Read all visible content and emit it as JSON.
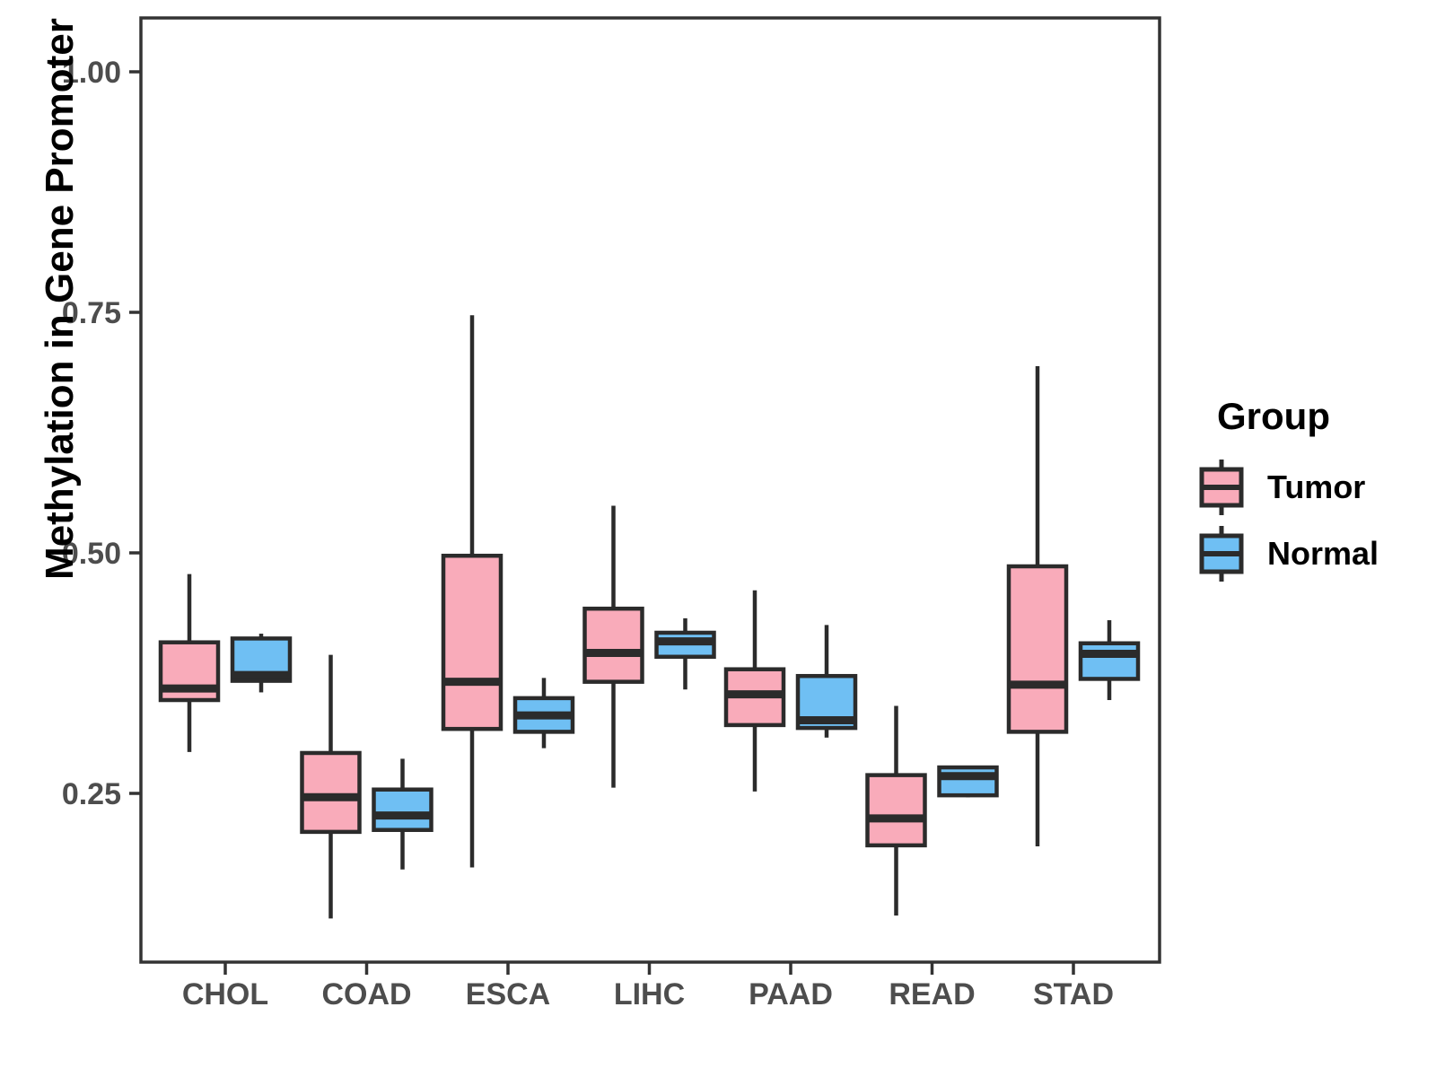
{
  "chart_data": {
    "type": "boxplot",
    "title": "",
    "xlabel": "",
    "ylabel": "Methylation in Gene Promoter",
    "categories": [
      "CHOL",
      "COAD",
      "ESCA",
      "LIHC",
      "PAAD",
      "READ",
      "STAD"
    ],
    "y_axis": {
      "ticks": [
        {
          "label": "1.00",
          "value": 1.0
        },
        {
          "label": "0.75",
          "value": 0.75
        },
        {
          "label": "0.50",
          "value": 0.5
        },
        {
          "label": "0.25",
          "value": 0.25
        }
      ],
      "range_shown": [
        0.075,
        1.055
      ],
      "grid": false
    },
    "legend": {
      "title": "Group",
      "position": "right",
      "entries": [
        {
          "label": "Tumor",
          "color": "#F9ABBA"
        },
        {
          "label": "Normal",
          "color": "#6FBFF3"
        }
      ]
    },
    "style": {
      "box_stroke": "#2B2B2B",
      "tick_label_color": "#4D4D4D",
      "panel_border_color": "#333333",
      "background": "#FFFFFF"
    },
    "series": [
      {
        "name": "Tumor",
        "color": "#F9ABBA",
        "boxes": [
          {
            "category": "CHOL",
            "low": 0.293,
            "q1": 0.347,
            "median": 0.359,
            "q3": 0.407,
            "high": 0.478
          },
          {
            "category": "COAD",
            "low": 0.12,
            "q1": 0.21,
            "median": 0.246,
            "q3": 0.292,
            "high": 0.394
          },
          {
            "category": "ESCA",
            "low": 0.173,
            "q1": 0.317,
            "median": 0.366,
            "q3": 0.497,
            "high": 0.747
          },
          {
            "category": "LIHC",
            "low": 0.256,
            "q1": 0.366,
            "median": 0.396,
            "q3": 0.442,
            "high": 0.549
          },
          {
            "category": "PAAD",
            "low": 0.252,
            "q1": 0.321,
            "median": 0.353,
            "q3": 0.379,
            "high": 0.461
          },
          {
            "category": "READ",
            "low": 0.123,
            "q1": 0.196,
            "median": 0.224,
            "q3": 0.269,
            "high": 0.341
          },
          {
            "category": "STAD",
            "low": 0.195,
            "q1": 0.314,
            "median": 0.363,
            "q3": 0.486,
            "high": 0.694
          }
        ]
      },
      {
        "name": "Normal",
        "color": "#6FBFF3",
        "boxes": [
          {
            "category": "CHOL",
            "low": 0.355,
            "q1": 0.367,
            "median": 0.373,
            "q3": 0.411,
            "high": 0.416
          },
          {
            "category": "COAD",
            "low": 0.171,
            "q1": 0.212,
            "median": 0.227,
            "q3": 0.254,
            "high": 0.286
          },
          {
            "category": "ESCA",
            "low": 0.297,
            "q1": 0.314,
            "median": 0.331,
            "q3": 0.349,
            "high": 0.37
          },
          {
            "category": "LIHC",
            "low": 0.358,
            "q1": 0.392,
            "median": 0.408,
            "q3": 0.417,
            "high": 0.432
          },
          {
            "category": "PAAD",
            "low": 0.308,
            "q1": 0.318,
            "median": 0.326,
            "q3": 0.372,
            "high": 0.425
          },
          {
            "category": "READ",
            "low": 0.246,
            "q1": 0.248,
            "median": 0.268,
            "q3": 0.277,
            "high": 0.277
          },
          {
            "category": "STAD",
            "low": 0.347,
            "q1": 0.369,
            "median": 0.395,
            "q3": 0.406,
            "high": 0.43
          }
        ]
      }
    ]
  }
}
